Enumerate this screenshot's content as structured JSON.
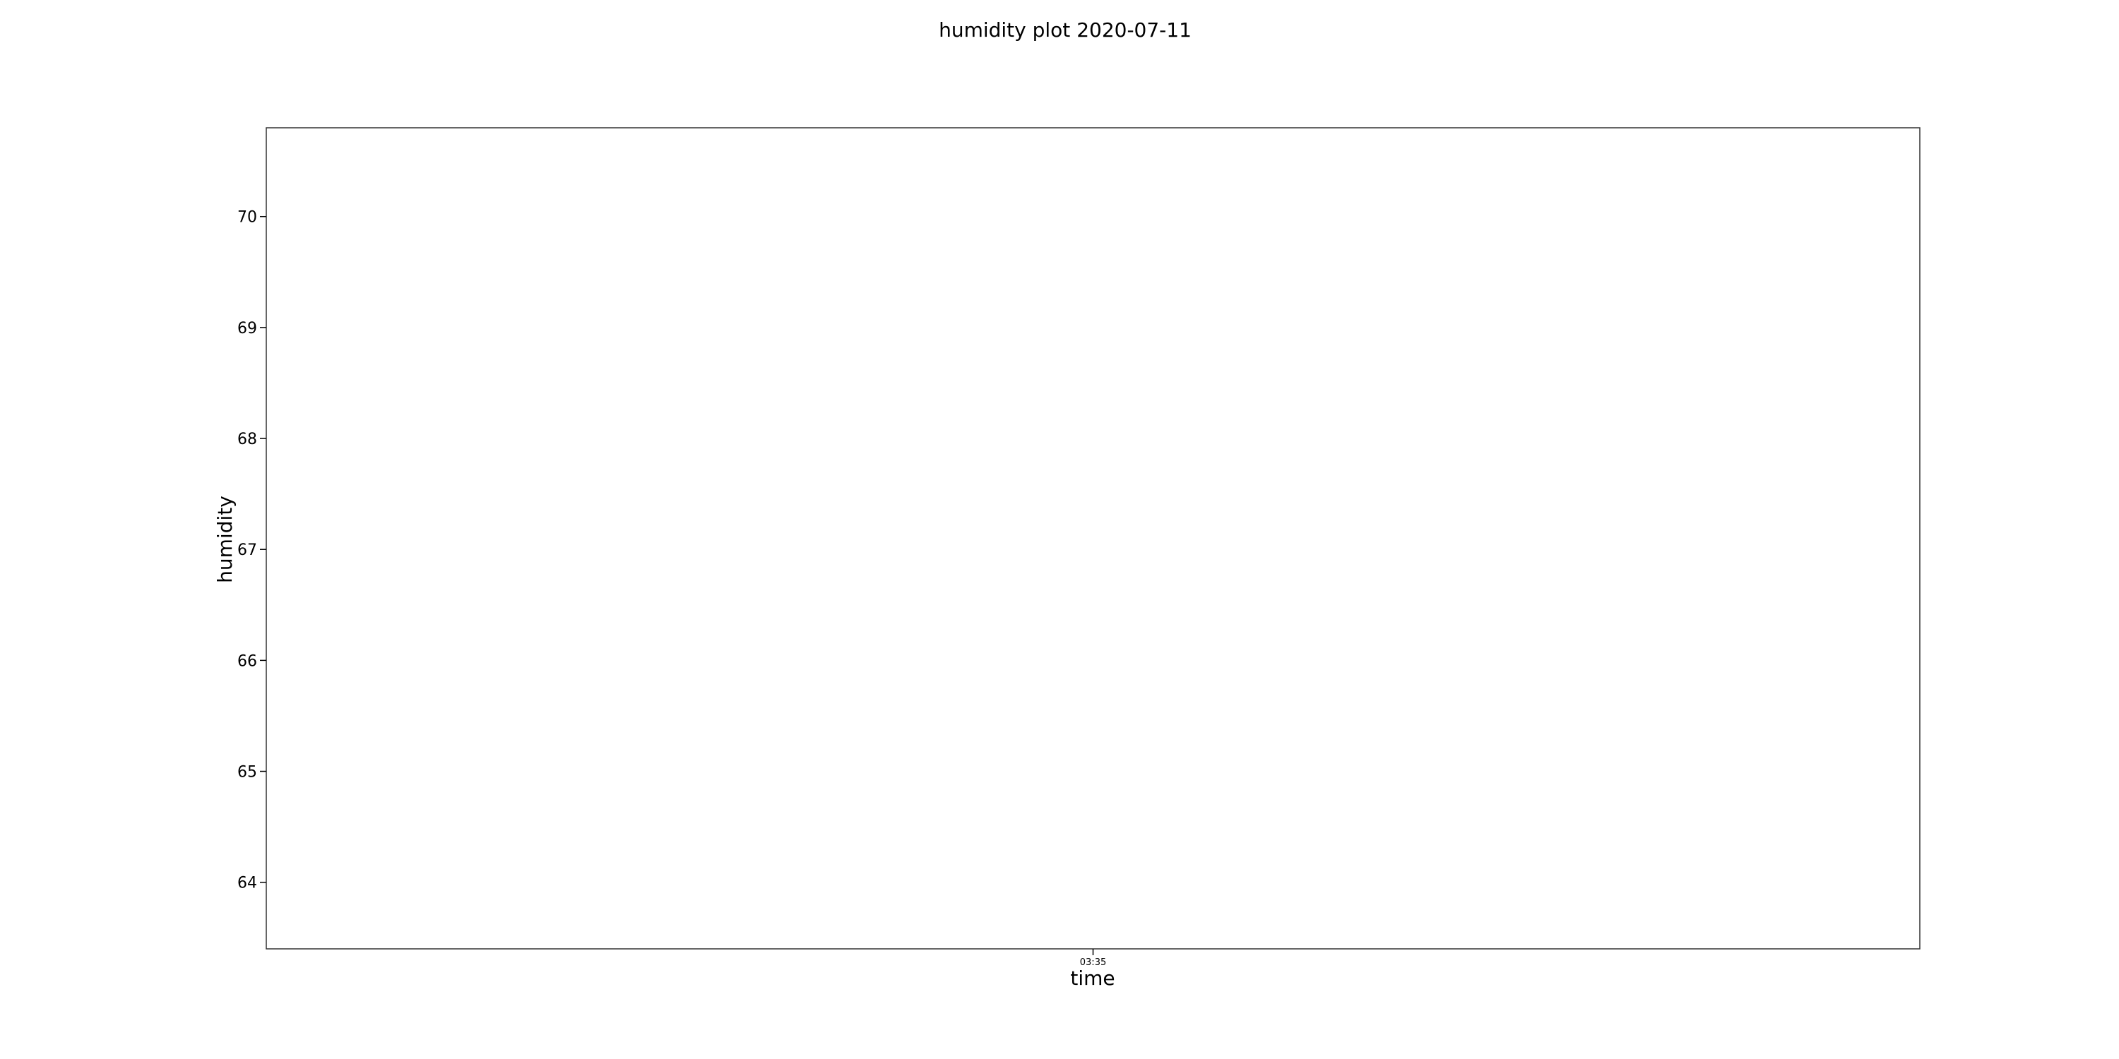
{
  "chart_data": {
    "type": "line",
    "title": "humidity plot 2020-07-11",
    "xlabel": "time",
    "ylabel": "humidity",
    "x_ticks": [
      "03:35"
    ],
    "y_ticks": [
      64,
      65,
      66,
      67,
      68,
      69,
      70
    ],
    "ylim": [
      63.4,
      70.8
    ],
    "grid": false,
    "series": []
  }
}
